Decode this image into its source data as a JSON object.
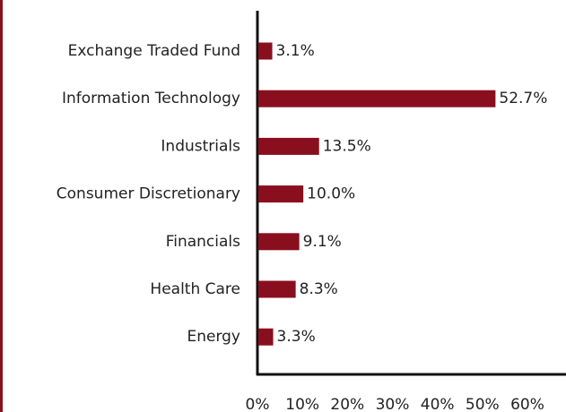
{
  "chart_data": {
    "type": "bar",
    "orientation": "horizontal",
    "categories": [
      "Exchange Traded Fund",
      "Information Technology",
      "Industrials",
      "Consumer Discretionary",
      "Financials",
      "Health Care",
      "Energy"
    ],
    "values": [
      3.1,
      52.7,
      13.5,
      10.0,
      9.1,
      8.3,
      3.3
    ],
    "value_labels": [
      "3.1%",
      "52.7%",
      "13.5%",
      "10.0%",
      "9.1%",
      "8.3%",
      "3.3%"
    ],
    "color": "#8a0f1e",
    "xlim": [
      0,
      60
    ],
    "xticks": [
      {
        "value": 0,
        "label": "0%"
      },
      {
        "value": 10,
        "label": "10%"
      },
      {
        "value": 20,
        "label": "20%"
      },
      {
        "value": 30,
        "label": "30%"
      },
      {
        "value": 40,
        "label": "40%"
      },
      {
        "value": 50,
        "label": "50%"
      },
      {
        "value": 60,
        "label": "60%"
      }
    ]
  }
}
